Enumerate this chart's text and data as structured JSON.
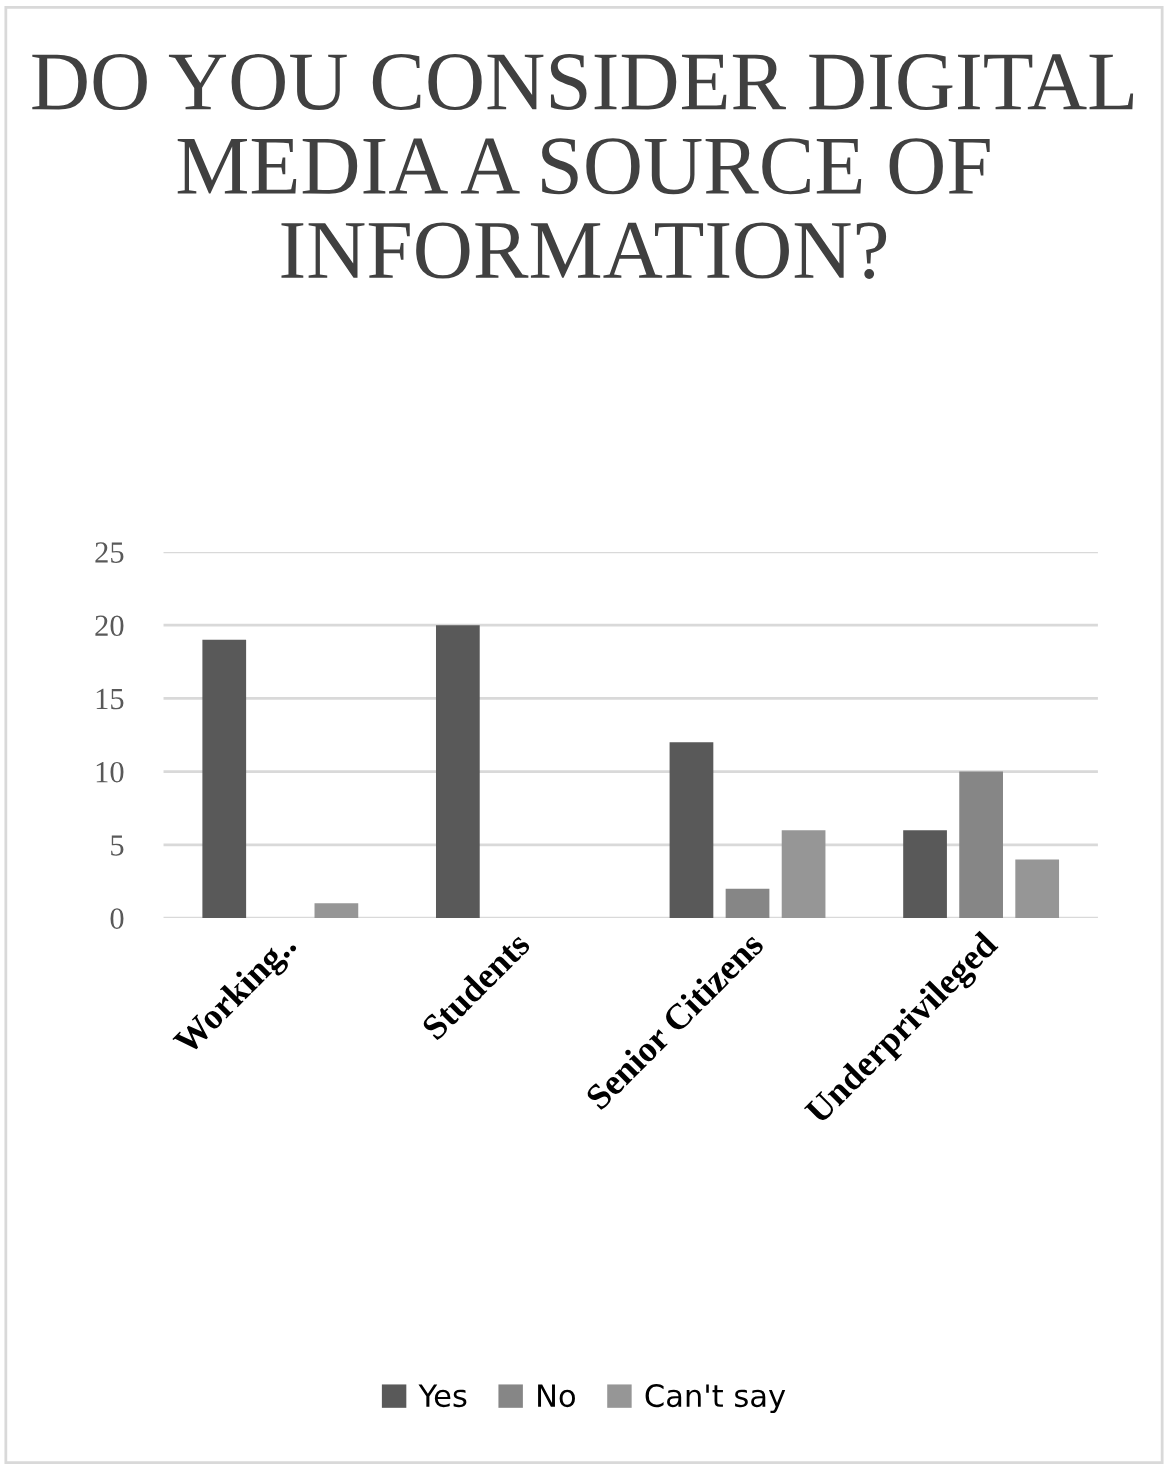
{
  "chart_data": {
    "type": "bar",
    "title": "DO YOU CONSIDER DIGITAL MEDIA A SOURCE OF INFORMATION?",
    "categories": [
      "Working..",
      "Students",
      "Senior Citizens",
      "Underprivileged"
    ],
    "series": [
      {
        "name": "Yes",
        "color": "#595959",
        "values": [
          19,
          20,
          12,
          6
        ]
      },
      {
        "name": "No",
        "color": "#868686",
        "values": [
          0,
          0,
          2,
          10
        ]
      },
      {
        "name": "Can't say",
        "color": "#969696",
        "values": [
          1,
          0,
          6,
          4
        ]
      }
    ],
    "ylim": [
      0,
      25
    ],
    "yticks": [
      0,
      5,
      10,
      15,
      20,
      25
    ],
    "grid": "y",
    "legend": "bottom"
  }
}
